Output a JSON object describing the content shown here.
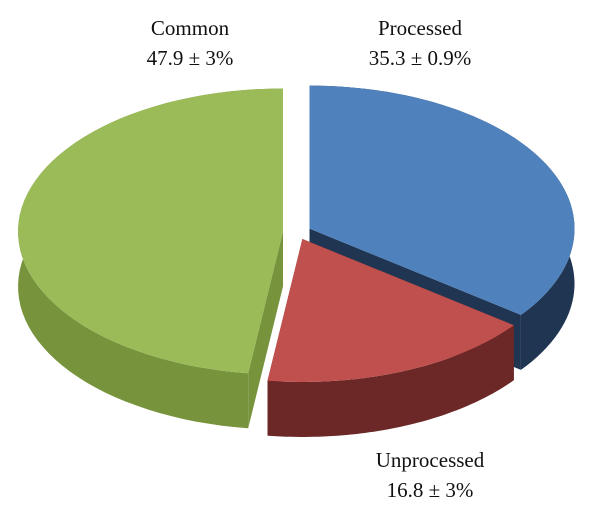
{
  "chart_data": {
    "type": "pie3d",
    "categories": [
      "Processed",
      "Unprocessed",
      "Common"
    ],
    "values": [
      35.3,
      16.8,
      47.9
    ],
    "value_labels": [
      "35.3 ± 0.9%",
      "16.8 ± 3%",
      "47.9 ± 3%"
    ],
    "colors": [
      "#4f81bd",
      "#c0504d",
      "#9bbb59"
    ],
    "side_colors": [
      "#1f3552",
      "#6b2826",
      "#77933c"
    ]
  }
}
